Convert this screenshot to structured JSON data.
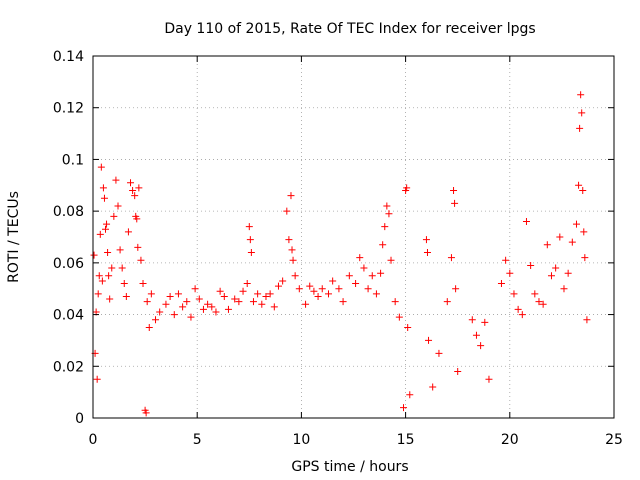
{
  "chart_data": {
    "type": "scatter",
    "title": "Day 110 of 2015, Rate Of TEC Index for receiver lpgs",
    "xlabel": "GPS time / hours",
    "ylabel": "ROTI / TECUs",
    "xlim": [
      0,
      25
    ],
    "ylim": [
      0,
      0.14
    ],
    "x_ticks": [
      0,
      5,
      10,
      15,
      20,
      25
    ],
    "x_tick_labels": [
      "0",
      "5",
      "10",
      "15",
      "20",
      "25"
    ],
    "y_ticks": [
      0,
      0.02,
      0.04,
      0.06,
      0.08,
      0.1,
      0.12,
      0.14
    ],
    "y_tick_labels": [
      "0",
      "0.02",
      "0.04",
      "0.06",
      "0.08",
      "0.1",
      "0.12",
      "0.14"
    ],
    "grid": true,
    "marker": "+",
    "color": "#ff0000",
    "series": [
      {
        "name": "ROTI",
        "points": [
          [
            0.05,
            0.063
          ],
          [
            0.1,
            0.025
          ],
          [
            0.15,
            0.041
          ],
          [
            0.2,
            0.015
          ],
          [
            0.25,
            0.048
          ],
          [
            0.3,
            0.055
          ],
          [
            0.35,
            0.071
          ],
          [
            0.4,
            0.097
          ],
          [
            0.45,
            0.053
          ],
          [
            0.5,
            0.089
          ],
          [
            0.55,
            0.085
          ],
          [
            0.6,
            0.073
          ],
          [
            0.65,
            0.075
          ],
          [
            0.7,
            0.064
          ],
          [
            0.75,
            0.055
          ],
          [
            0.8,
            0.046
          ],
          [
            0.9,
            0.058
          ],
          [
            1.0,
            0.078
          ],
          [
            1.1,
            0.092
          ],
          [
            1.2,
            0.082
          ],
          [
            1.3,
            0.065
          ],
          [
            1.4,
            0.058
          ],
          [
            1.5,
            0.052
          ],
          [
            1.6,
            0.047
          ],
          [
            1.7,
            0.072
          ],
          [
            1.8,
            0.091
          ],
          [
            1.9,
            0.088
          ],
          [
            2.0,
            0.086
          ],
          [
            2.05,
            0.078
          ],
          [
            2.1,
            0.077
          ],
          [
            2.15,
            0.066
          ],
          [
            2.2,
            0.089
          ],
          [
            2.3,
            0.061
          ],
          [
            2.4,
            0.052
          ],
          [
            2.5,
            0.003
          ],
          [
            2.55,
            0.002
          ],
          [
            2.6,
            0.045
          ],
          [
            2.7,
            0.035
          ],
          [
            2.8,
            0.048
          ],
          [
            3.0,
            0.038
          ],
          [
            3.2,
            0.041
          ],
          [
            3.5,
            0.044
          ],
          [
            3.7,
            0.047
          ],
          [
            3.9,
            0.04
          ],
          [
            4.1,
            0.048
          ],
          [
            4.3,
            0.043
          ],
          [
            4.5,
            0.045
          ],
          [
            4.7,
            0.039
          ],
          [
            4.9,
            0.05
          ],
          [
            5.1,
            0.046
          ],
          [
            5.3,
            0.042
          ],
          [
            5.5,
            0.044
          ],
          [
            5.7,
            0.043
          ],
          [
            5.9,
            0.041
          ],
          [
            6.1,
            0.049
          ],
          [
            6.3,
            0.047
          ],
          [
            6.5,
            0.042
          ],
          [
            6.8,
            0.046
          ],
          [
            7.0,
            0.045
          ],
          [
            7.2,
            0.049
          ],
          [
            7.4,
            0.052
          ],
          [
            7.5,
            0.074
          ],
          [
            7.55,
            0.069
          ],
          [
            7.6,
            0.064
          ],
          [
            7.7,
            0.045
          ],
          [
            7.9,
            0.048
          ],
          [
            8.1,
            0.044
          ],
          [
            8.3,
            0.047
          ],
          [
            8.5,
            0.048
          ],
          [
            8.7,
            0.043
          ],
          [
            8.9,
            0.051
          ],
          [
            9.1,
            0.053
          ],
          [
            9.3,
            0.08
          ],
          [
            9.4,
            0.069
          ],
          [
            9.5,
            0.086
          ],
          [
            9.55,
            0.065
          ],
          [
            9.6,
            0.061
          ],
          [
            9.7,
            0.055
          ],
          [
            9.9,
            0.05
          ],
          [
            10.2,
            0.044
          ],
          [
            10.4,
            0.051
          ],
          [
            10.6,
            0.049
          ],
          [
            10.8,
            0.047
          ],
          [
            11.0,
            0.05
          ],
          [
            11.3,
            0.048
          ],
          [
            11.5,
            0.053
          ],
          [
            11.8,
            0.05
          ],
          [
            12.0,
            0.045
          ],
          [
            12.3,
            0.055
          ],
          [
            12.6,
            0.052
          ],
          [
            12.8,
            0.062
          ],
          [
            13.0,
            0.058
          ],
          [
            13.2,
            0.05
          ],
          [
            13.4,
            0.055
          ],
          [
            13.6,
            0.048
          ],
          [
            13.8,
            0.056
          ],
          [
            13.9,
            0.067
          ],
          [
            14.0,
            0.074
          ],
          [
            14.1,
            0.082
          ],
          [
            14.2,
            0.079
          ],
          [
            14.3,
            0.061
          ],
          [
            14.5,
            0.045
          ],
          [
            14.7,
            0.039
          ],
          [
            14.9,
            0.004
          ],
          [
            15.0,
            0.088
          ],
          [
            15.05,
            0.089
          ],
          [
            15.1,
            0.035
          ],
          [
            15.2,
            0.009
          ],
          [
            16.0,
            0.069
          ],
          [
            16.05,
            0.064
          ],
          [
            16.1,
            0.03
          ],
          [
            16.3,
            0.012
          ],
          [
            16.6,
            0.025
          ],
          [
            17.0,
            0.045
          ],
          [
            17.2,
            0.062
          ],
          [
            17.3,
            0.088
          ],
          [
            17.35,
            0.083
          ],
          [
            17.4,
            0.05
          ],
          [
            17.5,
            0.018
          ],
          [
            18.2,
            0.038
          ],
          [
            18.4,
            0.032
          ],
          [
            18.6,
            0.028
          ],
          [
            18.8,
            0.037
          ],
          [
            19.0,
            0.015
          ],
          [
            19.6,
            0.052
          ],
          [
            19.8,
            0.061
          ],
          [
            20.0,
            0.056
          ],
          [
            20.2,
            0.048
          ],
          [
            20.4,
            0.042
          ],
          [
            20.6,
            0.04
          ],
          [
            20.8,
            0.076
          ],
          [
            21.0,
            0.059
          ],
          [
            21.2,
            0.048
          ],
          [
            21.4,
            0.045
          ],
          [
            21.6,
            0.044
          ],
          [
            21.8,
            0.067
          ],
          [
            22.0,
            0.055
          ],
          [
            22.2,
            0.058
          ],
          [
            22.4,
            0.07
          ],
          [
            22.6,
            0.05
          ],
          [
            22.8,
            0.056
          ],
          [
            23.0,
            0.068
          ],
          [
            23.2,
            0.075
          ],
          [
            23.3,
            0.09
          ],
          [
            23.35,
            0.112
          ],
          [
            23.4,
            0.125
          ],
          [
            23.45,
            0.118
          ],
          [
            23.5,
            0.088
          ],
          [
            23.55,
            0.072
          ],
          [
            23.6,
            0.062
          ],
          [
            23.7,
            0.038
          ]
        ]
      }
    ]
  }
}
